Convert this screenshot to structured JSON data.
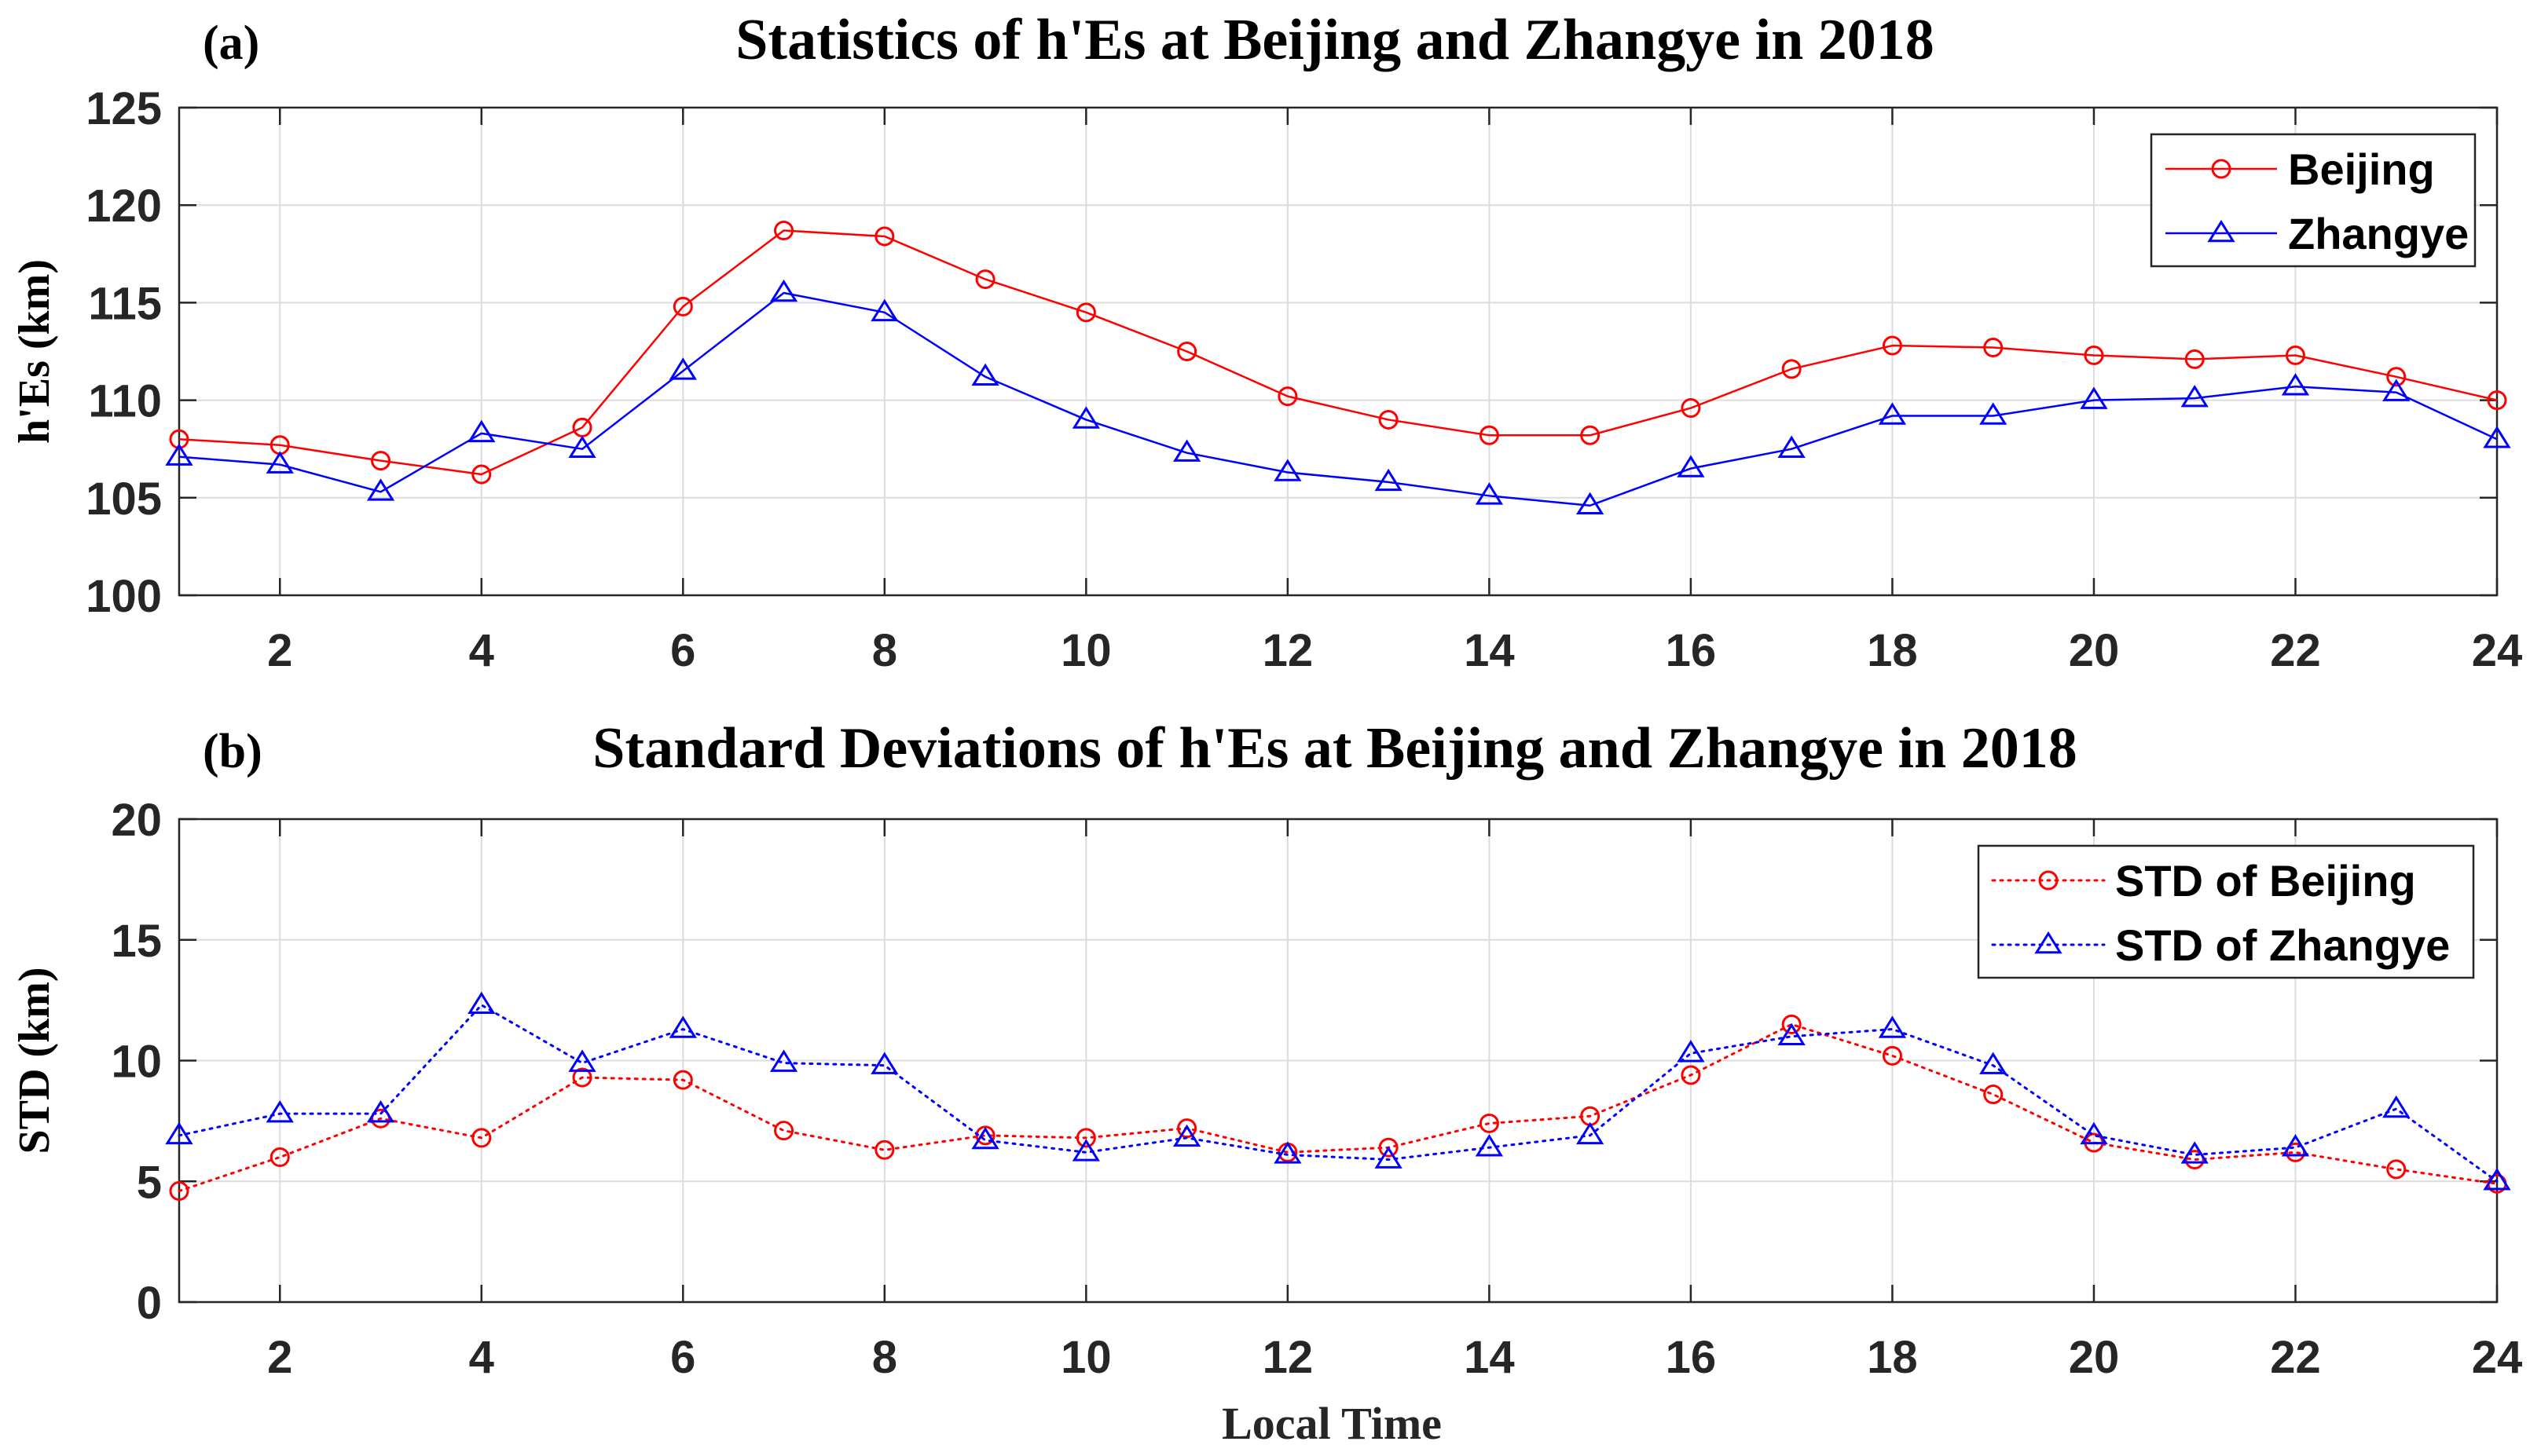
{
  "chart_data": [
    {
      "type": "line",
      "panel_label": "(a)",
      "title": "Statistics of h'Es at Beijing and Zhangye in 2018",
      "xlabel": "",
      "ylabel": "h'Es (km)",
      "x": [
        1,
        2,
        3,
        4,
        5,
        6,
        7,
        8,
        9,
        10,
        11,
        12,
        13,
        14,
        15,
        16,
        17,
        18,
        19,
        20,
        21,
        22,
        23,
        24
      ],
      "xlim": [
        1,
        24
      ],
      "ylim": [
        100,
        125
      ],
      "xticks": [
        2,
        4,
        6,
        8,
        10,
        12,
        14,
        16,
        18,
        20,
        22,
        24
      ],
      "xtick_labels": [
        "2",
        "4",
        "6",
        "8",
        "10",
        "12",
        "14",
        "16",
        "18",
        "20",
        "22",
        "24"
      ],
      "yticks": [
        100,
        105,
        110,
        115,
        120,
        125
      ],
      "ytick_labels": [
        "100",
        "105",
        "110",
        "115",
        "120",
        "125"
      ],
      "grid": true,
      "legend_position": "top-right",
      "series": [
        {
          "name": "Beijing",
          "color": "#ff0000",
          "line_style": "solid",
          "marker": "circle",
          "values": [
            108.0,
            107.7,
            106.9,
            106.2,
            108.6,
            114.8,
            118.7,
            118.4,
            116.2,
            114.5,
            112.5,
            110.2,
            109.0,
            108.2,
            108.2,
            109.6,
            111.6,
            112.8,
            112.7,
            112.3,
            112.1,
            112.3,
            111.2,
            110.0
          ]
        },
        {
          "name": "Zhangye",
          "color": "#0000ff",
          "line_style": "solid",
          "marker": "triangle",
          "values": [
            107.1,
            106.7,
            105.3,
            108.3,
            107.5,
            111.5,
            115.5,
            114.5,
            111.2,
            109.0,
            107.3,
            106.3,
            105.8,
            105.1,
            104.6,
            106.5,
            107.5,
            109.2,
            109.2,
            110.0,
            110.1,
            110.7,
            110.4,
            108.0
          ]
        }
      ]
    },
    {
      "type": "line",
      "panel_label": "(b)",
      "title": "Standard Deviations of h'Es at Beijing and Zhangye in 2018",
      "xlabel": "Local Time",
      "ylabel": "STD (km)",
      "x": [
        1,
        2,
        3,
        4,
        5,
        6,
        7,
        8,
        9,
        10,
        11,
        12,
        13,
        14,
        15,
        16,
        17,
        18,
        19,
        20,
        21,
        22,
        23,
        24
      ],
      "xlim": [
        1,
        24
      ],
      "ylim": [
        0,
        20
      ],
      "xticks": [
        2,
        4,
        6,
        8,
        10,
        12,
        14,
        16,
        18,
        20,
        22,
        24
      ],
      "xtick_labels": [
        "2",
        "4",
        "6",
        "8",
        "10",
        "12",
        "14",
        "16",
        "18",
        "20",
        "22",
        "24"
      ],
      "yticks": [
        0,
        5,
        10,
        15,
        20
      ],
      "ytick_labels": [
        "0",
        "5",
        "10",
        "15",
        "20"
      ],
      "grid": true,
      "legend_position": "top-right",
      "series": [
        {
          "name": "STD of Beijing",
          "color": "#ff0000",
          "line_style": "dotted",
          "marker": "circle",
          "values": [
            4.6,
            6.0,
            7.6,
            6.8,
            9.3,
            9.2,
            7.1,
            6.3,
            6.9,
            6.8,
            7.2,
            6.2,
            6.4,
            7.4,
            7.7,
            9.4,
            11.5,
            10.2,
            8.6,
            6.6,
            5.9,
            6.2,
            5.5,
            4.9
          ]
        },
        {
          "name": "STD of Zhangye",
          "color": "#0000ff",
          "line_style": "dotted",
          "marker": "triangle",
          "values": [
            6.9,
            7.8,
            7.8,
            12.3,
            9.9,
            11.3,
            9.9,
            9.8,
            6.7,
            6.2,
            6.8,
            6.1,
            5.9,
            6.4,
            6.9,
            10.3,
            11.0,
            11.3,
            9.8,
            6.9,
            6.1,
            6.4,
            8.0,
            5.0
          ]
        }
      ]
    }
  ]
}
